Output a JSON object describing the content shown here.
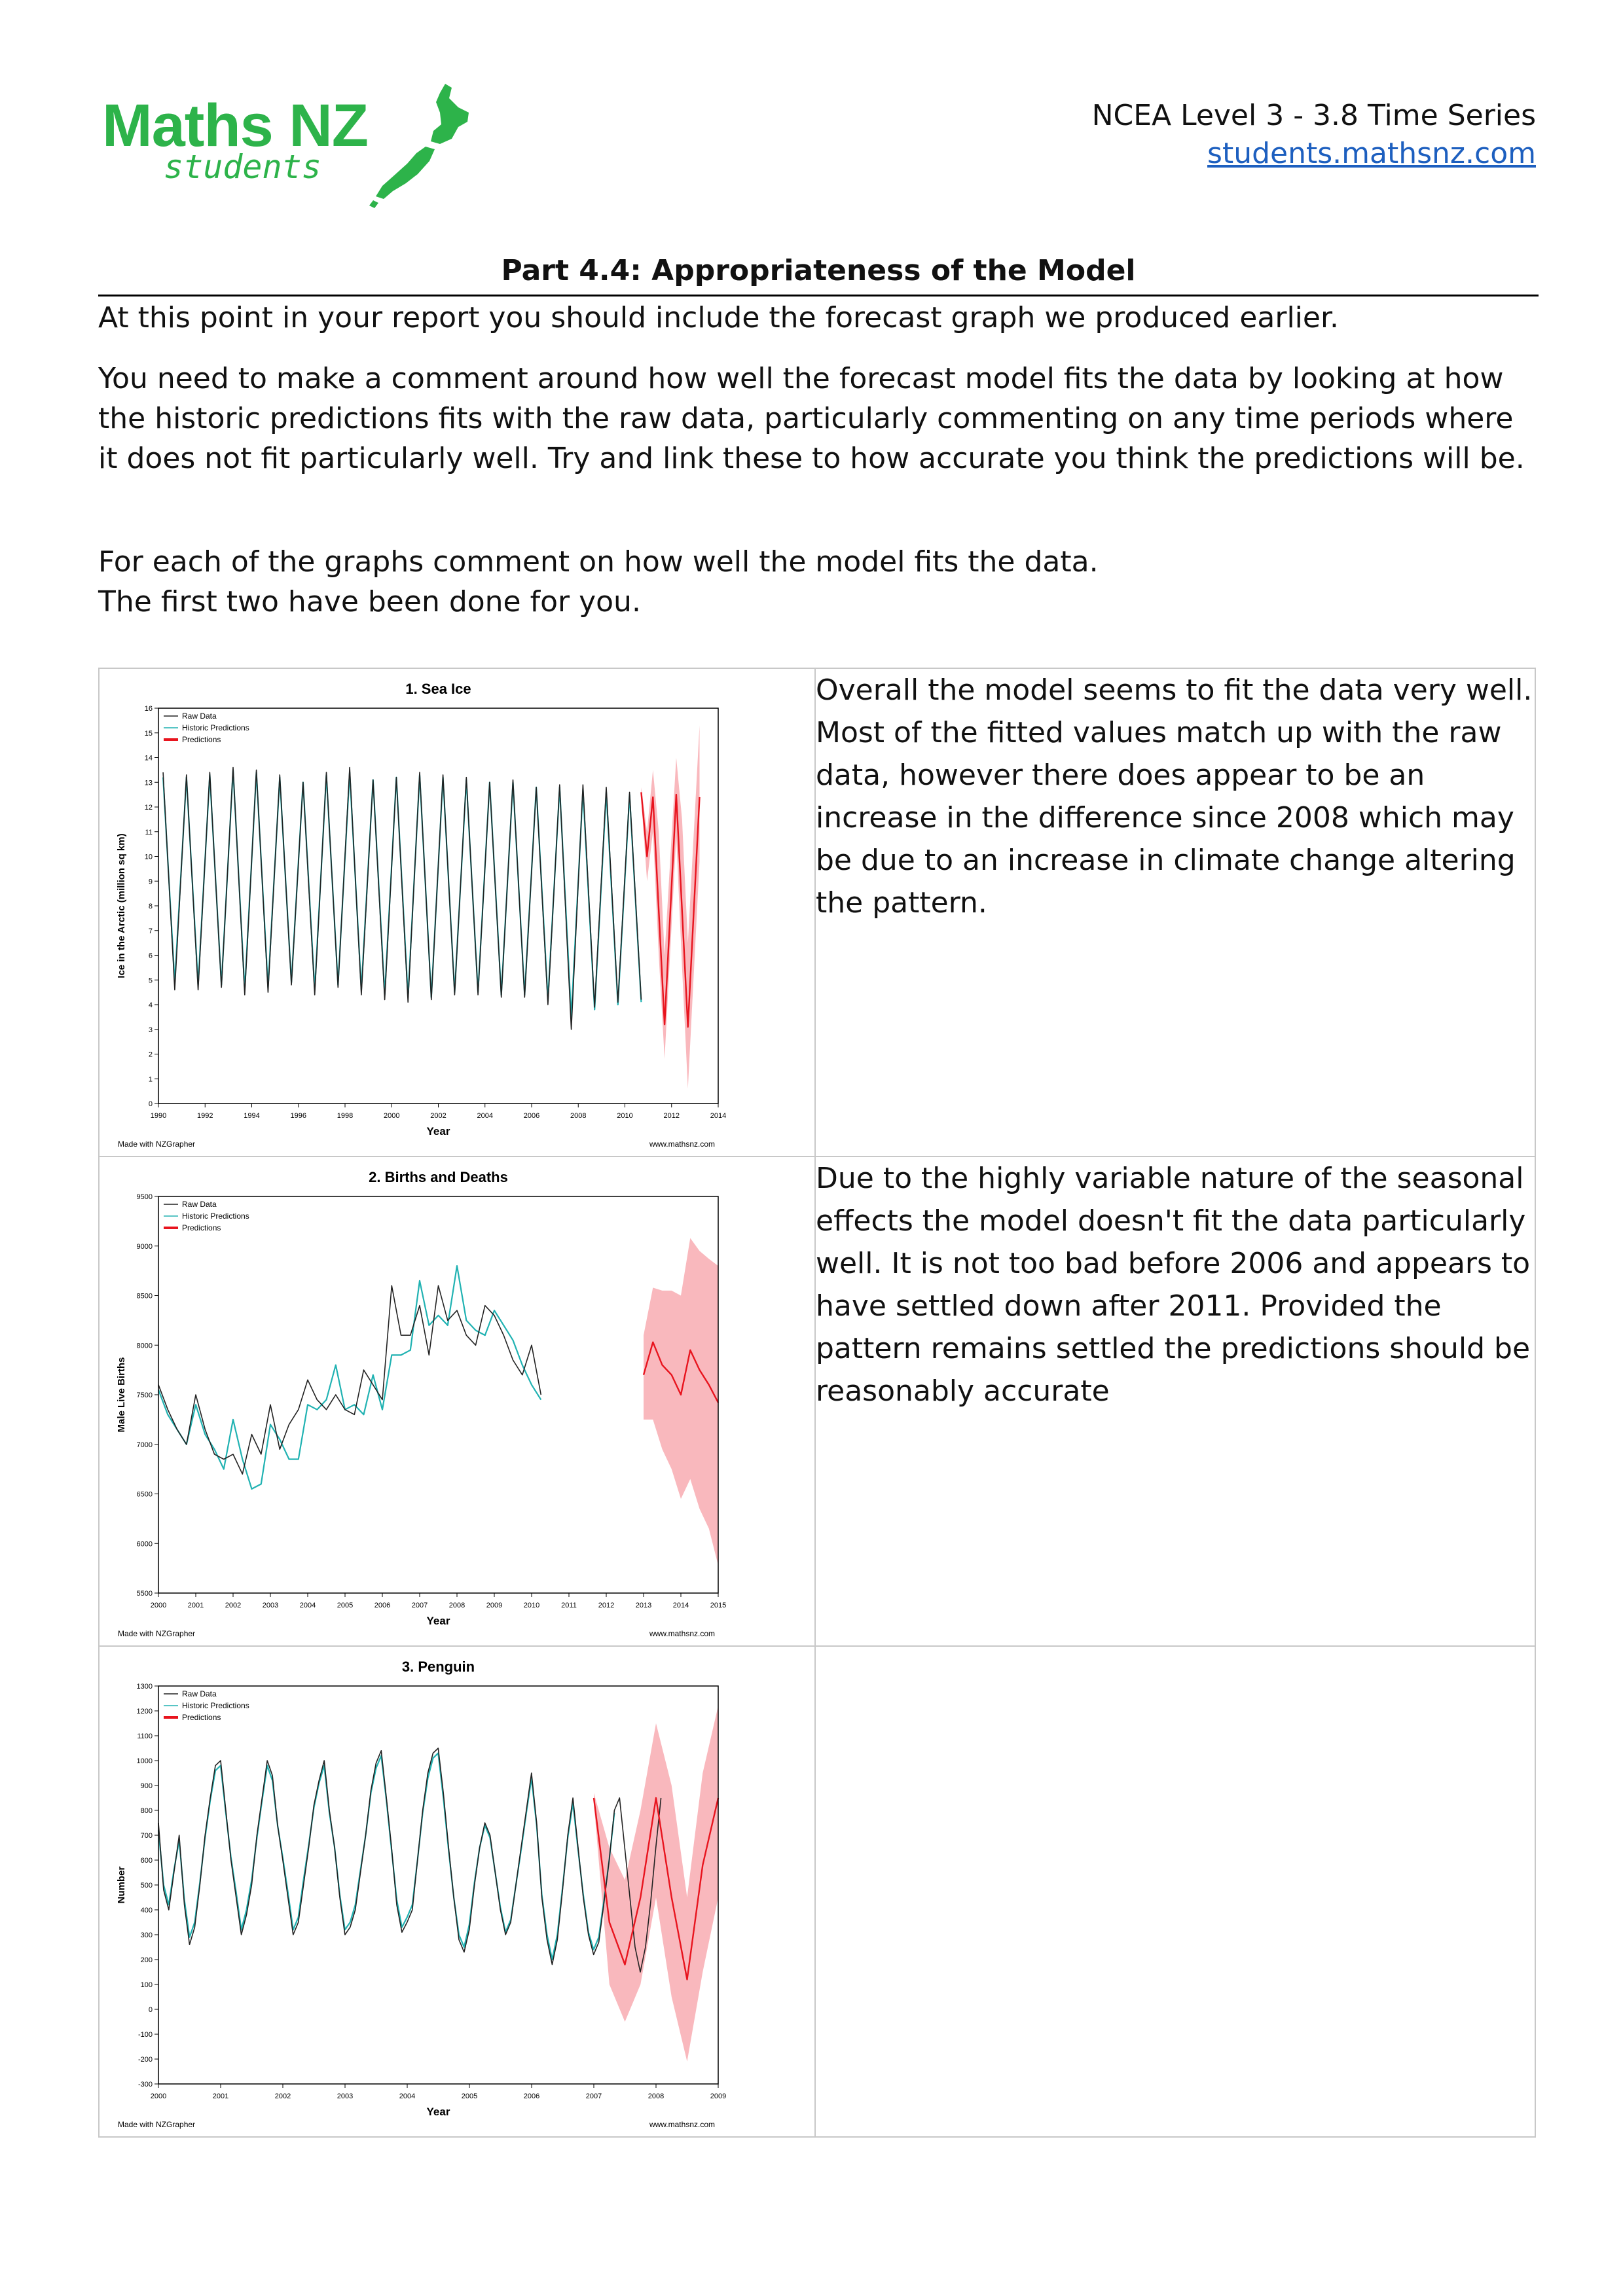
{
  "logo": {
    "main": "Maths NZ",
    "sub": "students"
  },
  "header": {
    "course": "NCEA Level 3 - 3.8 Time Series",
    "link": "students.mathsnz.com"
  },
  "part_title": "Part 4.4: Appropriateness of the Model",
  "paragraphs": [
    "At this point in your report you should include the forecast graph we produced earlier.",
    "You need to make a comment around how well the forecast model fits the data by looking at how the historic predictions fits with the raw data, particularly commenting on any time periods where it does not fit particularly well. Try and link these to how accurate you think the predictions will be.",
    "For each of the graphs comment on how well the model fits the data.",
    "The first two have been done for you."
  ],
  "rows": [
    {
      "comment": "Overall the model seems to fit the data very well. Most of the fitted values match up with the raw data, however there does appear to be an increase in the difference since 2008 which may be due to an increase in climate change altering the pattern."
    },
    {
      "comment": "Due to the highly variable nature of the seasonal effects the model doesn't fit the data particularly well. It is not too bad before 2006 and appears to have settled down after 2011. Provided the pattern remains settled the predictions should be reasonably accurate"
    },
    {
      "comment": ""
    }
  ],
  "colors": {
    "raw": "#222222",
    "historic": "#20b2b2",
    "prediction": "#e8141e",
    "band": "#f9b8bd"
  },
  "chart_data": [
    {
      "type": "line",
      "title": "1. Sea Ice",
      "xlabel": "Year",
      "ylabel": "Ice in the Arctic (million sq km)",
      "legend": [
        "Raw Data",
        "Historic Predictions",
        "Predictions"
      ],
      "legend_position": "top-left",
      "credit_left": "Made with NZGrapher",
      "credit_right": "www.mathsnz.com",
      "xlim": [
        1990,
        2014
      ],
      "ylim": [
        0,
        16
      ],
      "xticks": [
        "1990",
        "1992",
        "1994",
        "1996",
        "1998",
        "2000",
        "2002",
        "2004",
        "2006",
        "2008",
        "2010",
        "2012",
        "2014"
      ],
      "yticks": [
        "0",
        "1",
        "2",
        "3",
        "4",
        "5",
        "6",
        "7",
        "8",
        "9",
        "10",
        "11",
        "12",
        "13",
        "14",
        "15",
        "16"
      ],
      "raw": {
        "start": 1990.2,
        "step": 0.5,
        "values": [
          13.4,
          4.6,
          13.3,
          4.6,
          13.4,
          4.7,
          13.6,
          4.4,
          13.5,
          4.5,
          13.3,
          4.8,
          13.0,
          4.4,
          13.4,
          4.7,
          13.6,
          4.4,
          13.1,
          4.2,
          13.2,
          4.1,
          13.4,
          4.2,
          13.3,
          4.4,
          13.2,
          4.4,
          13.0,
          4.3,
          13.1,
          4.3,
          12.8,
          4.0,
          12.9,
          3.0,
          12.9,
          3.9,
          12.8,
          4.1,
          12.6,
          4.2
        ]
      },
      "historic": {
        "start": 1990.2,
        "step": 0.5,
        "values": [
          13.2,
          4.9,
          13.2,
          4.8,
          13.3,
          4.8,
          13.5,
          4.6,
          13.4,
          4.7,
          13.2,
          4.9,
          13.0,
          4.6,
          13.3,
          4.8,
          13.4,
          4.6,
          13.1,
          4.4,
          13.2,
          4.3,
          13.3,
          4.3,
          13.2,
          4.5,
          13.1,
          4.5,
          13.0,
          4.4,
          13.0,
          4.4,
          12.8,
          4.2,
          12.8,
          3.5,
          12.7,
          3.8,
          12.6,
          4.0,
          12.5,
          4.1
        ]
      },
      "prediction": {
        "start": 2010.7,
        "values": [
          [
            2010.7,
            12.6
          ],
          [
            2010.95,
            10.0
          ],
          [
            2011.2,
            12.4
          ],
          [
            2011.7,
            3.2
          ],
          [
            2012.2,
            12.5
          ],
          [
            2012.7,
            3.1
          ],
          [
            2013.2,
            12.4
          ]
        ]
      },
      "band": {
        "upper": [
          [
            2010.7,
            12.8
          ],
          [
            2010.95,
            11.0
          ],
          [
            2011.2,
            13.5
          ],
          [
            2011.45,
            11.0
          ],
          [
            2011.7,
            6.0
          ],
          [
            2012.2,
            14.0
          ],
          [
            2012.45,
            11.5
          ],
          [
            2012.7,
            6.5
          ],
          [
            2013.2,
            15.3
          ]
        ],
        "lower": [
          [
            2010.7,
            12.3
          ],
          [
            2010.95,
            9.0
          ],
          [
            2011.2,
            11.0
          ],
          [
            2011.45,
            6.0
          ],
          [
            2011.7,
            1.8
          ],
          [
            2012.2,
            10.8
          ],
          [
            2012.45,
            5.5
          ],
          [
            2012.7,
            0.6
          ],
          [
            2013.2,
            9.8
          ]
        ]
      }
    },
    {
      "type": "line",
      "title": "2. Births and Deaths",
      "xlabel": "Year",
      "ylabel": "Male Live Births",
      "legend": [
        "Raw Data",
        "Historic Predictions",
        "Predictions"
      ],
      "legend_position": "top-left",
      "credit_left": "Made with NZGrapher",
      "credit_right": "www.mathsnz.com",
      "xlim": [
        2000,
        2015
      ],
      "ylim": [
        5500,
        9500
      ],
      "xticks": [
        "2000",
        "2001",
        "2002",
        "2003",
        "2004",
        "2005",
        "2006",
        "2007",
        "2008",
        "2009",
        "2010",
        "2011",
        "2012",
        "2013",
        "2014",
        "2015"
      ],
      "yticks": [
        "5500",
        "6000",
        "6500",
        "7000",
        "7500",
        "8000",
        "8500",
        "9000",
        "9500"
      ],
      "raw": {
        "start": 2000.0,
        "step": 0.25,
        "values": [
          7600,
          7350,
          7150,
          7000,
          7500,
          7150,
          6900,
          6850,
          6900,
          6700,
          7100,
          6900,
          7400,
          6950,
          7200,
          7350,
          7650,
          7450,
          7350,
          7500,
          7350,
          7300,
          7750,
          7600,
          7450,
          8600,
          8100,
          8100,
          8400,
          7900,
          8600,
          8250,
          8350,
          8100,
          8000,
          8400,
          8300,
          8100,
          7850,
          7700,
          8000,
          7500
        ]
      },
      "historic": {
        "start": 2000.0,
        "step": 0.25,
        "values": [
          7550,
          7300,
          7150,
          7000,
          7400,
          7100,
          6950,
          6750,
          7250,
          6850,
          6550,
          6600,
          7200,
          7050,
          6850,
          6850,
          7400,
          7350,
          7450,
          7800,
          7350,
          7400,
          7300,
          7700,
          7350,
          7900,
          7900,
          7950,
          8650,
          8200,
          8300,
          8200,
          8800,
          8250,
          8150,
          8100,
          8350,
          8200,
          8050,
          7800,
          7600,
          7450
        ]
      },
      "prediction": {
        "start": 2013.0,
        "values": [
          [
            2013.0,
            7700
          ],
          [
            2013.25,
            8030
          ],
          [
            2013.5,
            7800
          ],
          [
            2013.75,
            7700
          ],
          [
            2014.0,
            7500
          ],
          [
            2014.25,
            7950
          ],
          [
            2014.5,
            7750
          ],
          [
            2014.75,
            7600
          ],
          [
            2015.0,
            7420
          ]
        ]
      },
      "band": {
        "upper": [
          [
            2013.0,
            8100
          ],
          [
            2013.25,
            8580
          ],
          [
            2013.5,
            8550
          ],
          [
            2013.75,
            8550
          ],
          [
            2014.0,
            8500
          ],
          [
            2014.25,
            9080
          ],
          [
            2014.5,
            8950
          ],
          [
            2014.75,
            8870
          ],
          [
            2015.0,
            8800
          ]
        ],
        "lower": [
          [
            2013.0,
            7250
          ],
          [
            2013.25,
            7250
          ],
          [
            2013.5,
            6950
          ],
          [
            2013.75,
            6750
          ],
          [
            2014.0,
            6450
          ],
          [
            2014.25,
            6650
          ],
          [
            2014.5,
            6350
          ],
          [
            2014.75,
            6150
          ],
          [
            2015.0,
            5780
          ]
        ]
      }
    },
    {
      "type": "line",
      "title": "3. Penguin",
      "xlabel": "Year",
      "ylabel": "Number",
      "legend": [
        "Raw Data",
        "Historic Predictions",
        "Predictions"
      ],
      "legend_position": "top-left",
      "credit_left": "Made with NZGrapher",
      "credit_right": "www.mathsnz.com",
      "xlim": [
        2000,
        2009
      ],
      "ylim": [
        -300,
        1300
      ],
      "xticks": [
        "2000",
        "2001",
        "2002",
        "2003",
        "2004",
        "2005",
        "2006",
        "2007",
        "2008",
        "2009"
      ],
      "yticks": [
        "-300",
        "-200",
        "-100",
        "0",
        "100",
        "200",
        "300",
        "400",
        "500",
        "600",
        "700",
        "800",
        "900",
        "1000",
        "1100",
        "1200",
        "1300"
      ],
      "raw": {
        "start": 2000.0,
        "step": 0.0833,
        "values": [
          750,
          480,
          400,
          550,
          700,
          420,
          260,
          330,
          500,
          700,
          850,
          980,
          1000,
          800,
          600,
          450,
          300,
          380,
          500,
          700,
          850,
          1000,
          940,
          740,
          600,
          450,
          300,
          350,
          500,
          650,
          820,
          920,
          1000,
          800,
          650,
          450,
          300,
          330,
          400,
          550,
          700,
          880,
          990,
          1040,
          850,
          650,
          420,
          310,
          350,
          400,
          600,
          800,
          950,
          1030,
          1050,
          870,
          650,
          450,
          280,
          230,
          320,
          500,
          650,
          750,
          700,
          550,
          400,
          300,
          350,
          500,
          650,
          800,
          950,
          750,
          450,
          280,
          180,
          280,
          480,
          700,
          850,
          650,
          450,
          300,
          220,
          270,
          430,
          600,
          800,
          850,
          650,
          450,
          250,
          150,
          250,
          430,
          650,
          850
        ]
      },
      "historic": {
        "start": 2000.0,
        "step": 0.0833,
        "values": [
          720,
          500,
          420,
          560,
          680,
          440,
          290,
          350,
          510,
          690,
          840,
          960,
          980,
          790,
          610,
          470,
          320,
          400,
          520,
          690,
          840,
          980,
          920,
          740,
          610,
          470,
          320,
          370,
          520,
          660,
          810,
          910,
          980,
          790,
          650,
          460,
          320,
          350,
          420,
          560,
          700,
          870,
          970,
          1020,
          840,
          640,
          440,
          330,
          370,
          420,
          600,
          790,
          930,
          1010,
          1030,
          850,
          640,
          450,
          300,
          250,
          340,
          510,
          650,
          740,
          690,
          550,
          410,
          310,
          360,
          500,
          640,
          790,
          930,
          740,
          460,
          300,
          200,
          300,
          490,
          690,
          830,
          640,
          460,
          310,
          240,
          290,
          440,
          600,
          790
        ]
      },
      "prediction": {
        "start": 2007.0,
        "values": [
          [
            2007.0,
            850
          ],
          [
            2007.25,
            350
          ],
          [
            2007.5,
            180
          ],
          [
            2007.75,
            450
          ],
          [
            2008.0,
            850
          ],
          [
            2008.25,
            450
          ],
          [
            2008.5,
            120
          ],
          [
            2008.75,
            580
          ],
          [
            2009.0,
            850
          ]
        ]
      },
      "band": {
        "upper": [
          [
            2007.0,
            870
          ],
          [
            2007.25,
            650
          ],
          [
            2007.5,
            520
          ],
          [
            2007.75,
            800
          ],
          [
            2008.0,
            1150
          ],
          [
            2008.25,
            900
          ],
          [
            2008.5,
            450
          ],
          [
            2008.75,
            950
          ],
          [
            2009.0,
            1220
          ]
        ],
        "lower": [
          [
            2007.0,
            830
          ],
          [
            2007.25,
            100
          ],
          [
            2007.5,
            -50
          ],
          [
            2007.75,
            100
          ],
          [
            2008.0,
            450
          ],
          [
            2008.25,
            50
          ],
          [
            2008.5,
            -210
          ],
          [
            2008.75,
            150
          ],
          [
            2009.0,
            450
          ]
        ]
      }
    }
  ]
}
